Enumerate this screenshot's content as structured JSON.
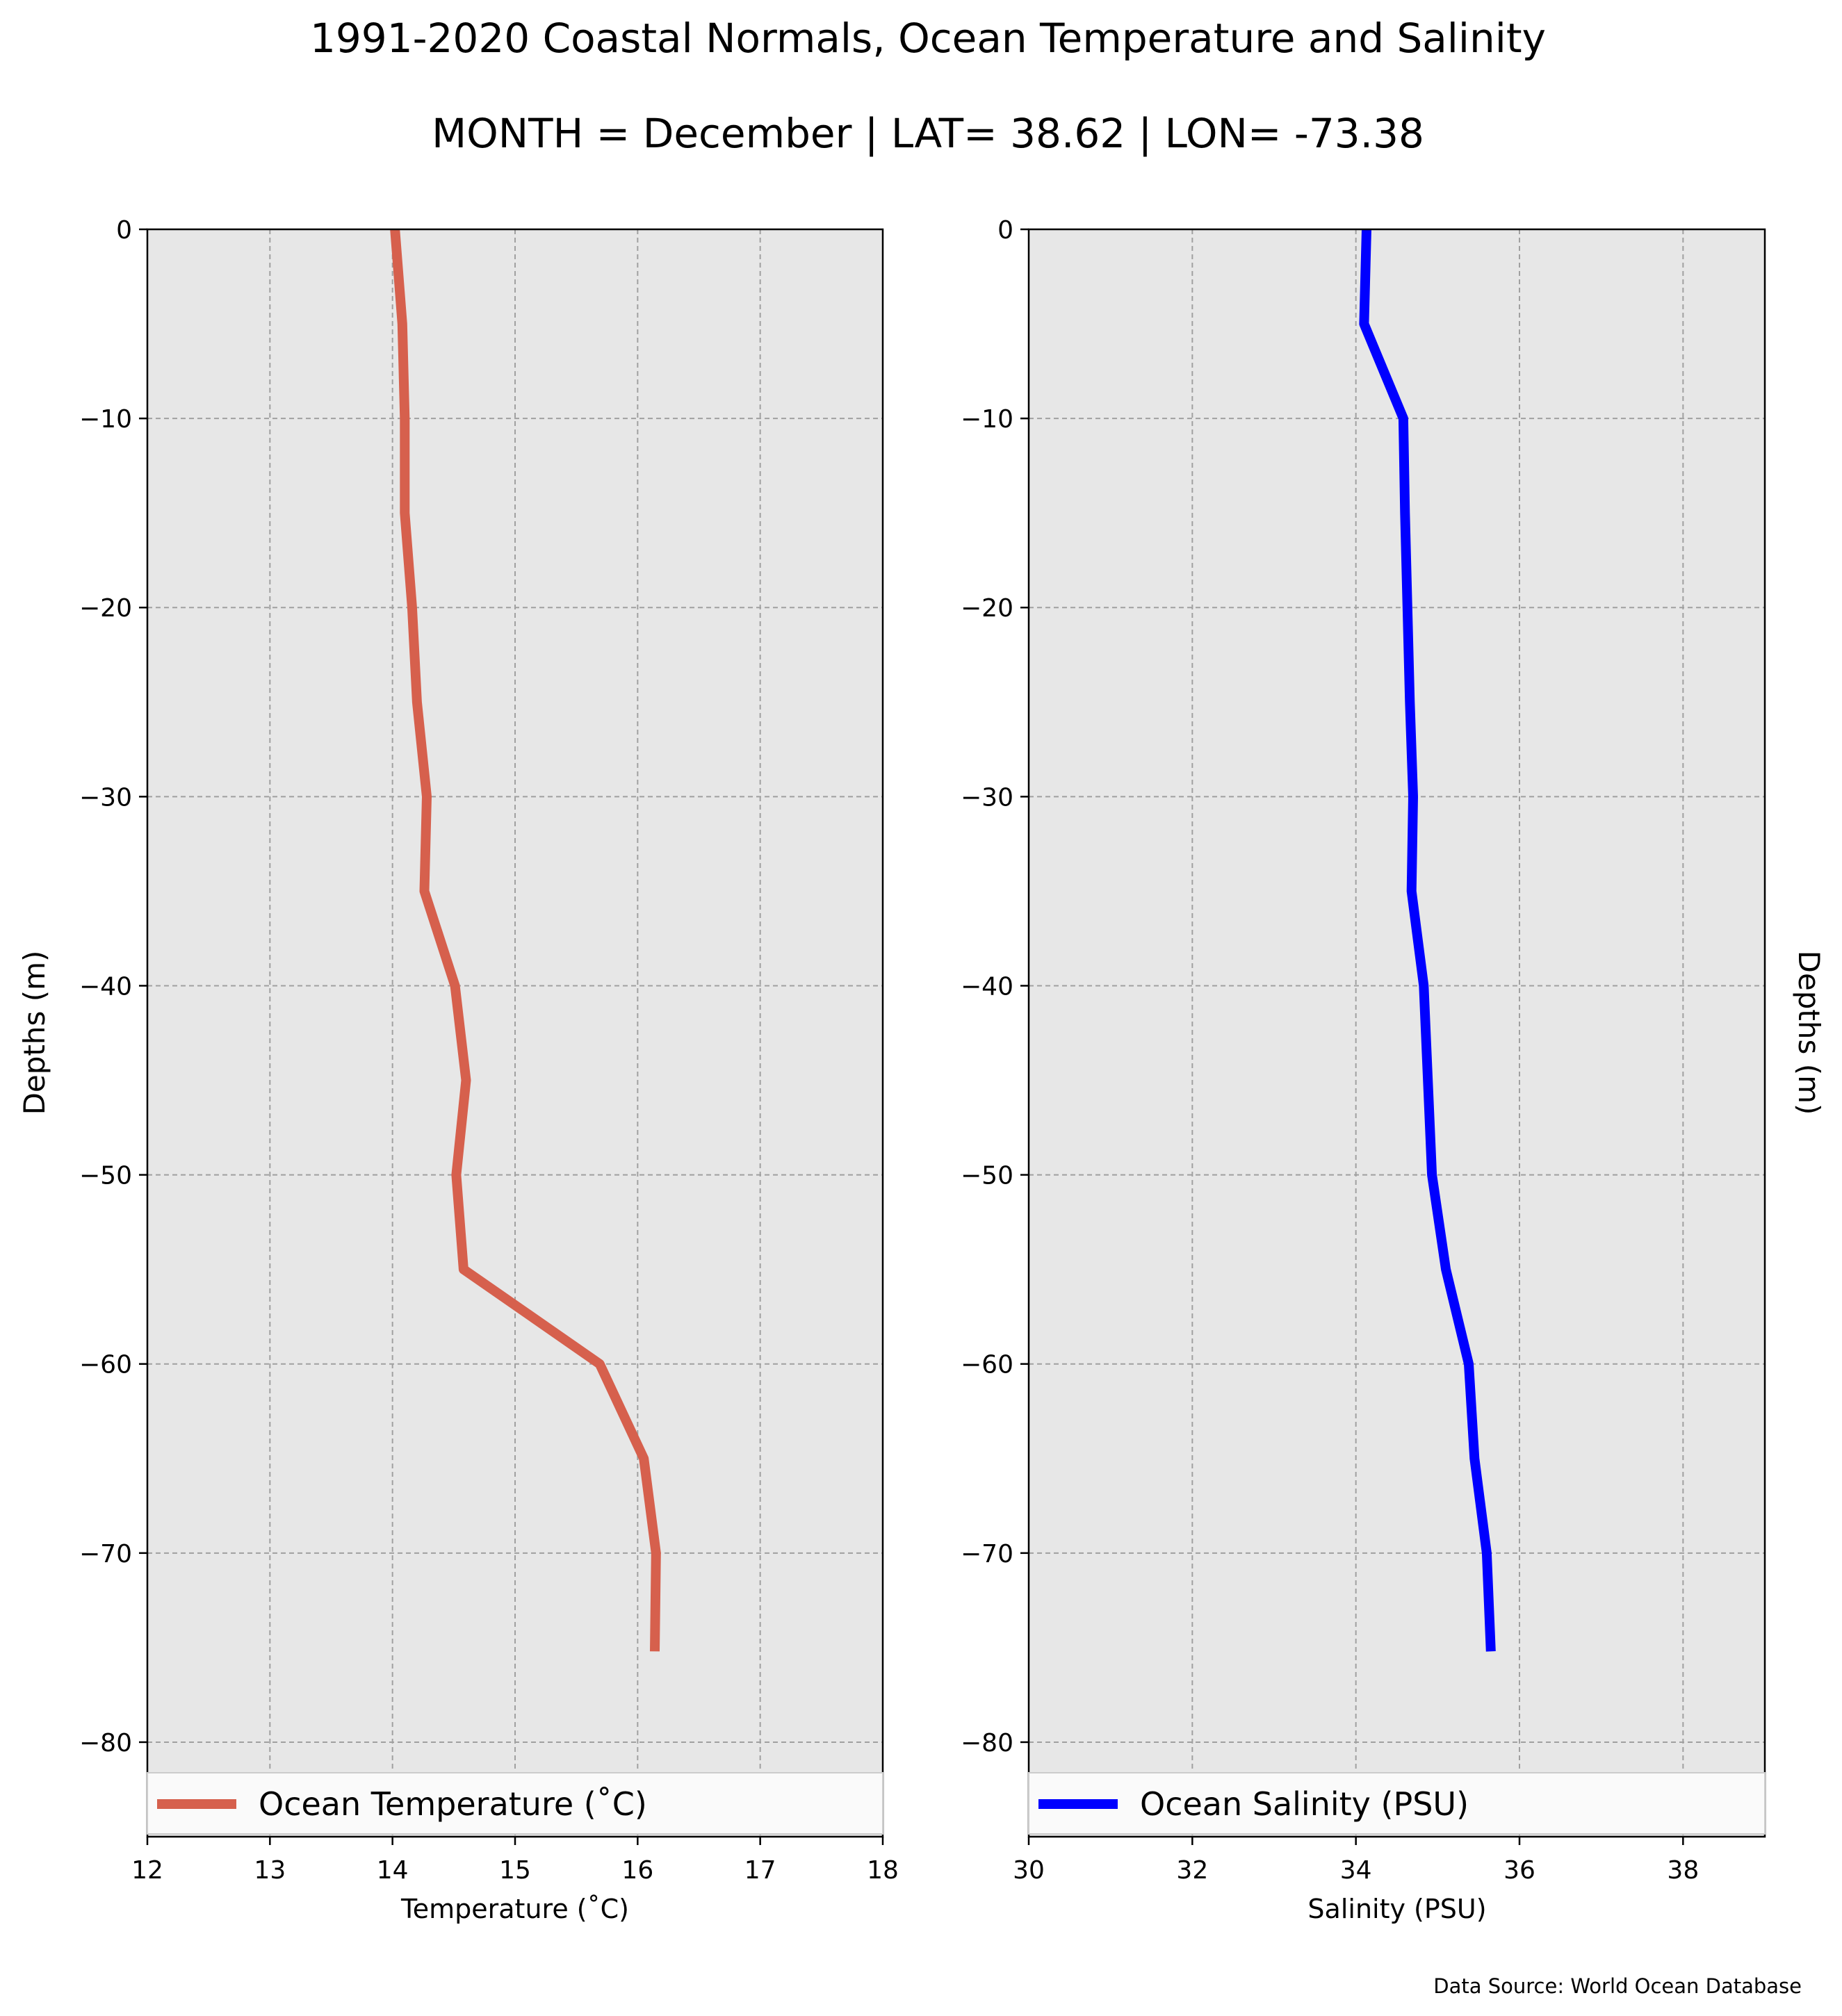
{
  "figure": {
    "title_line1": "1991-2020 Coastal Normals, Ocean Temperature and Salinity",
    "title_line2": "MONTH = December | LAT= 38.62 | LON= -73.38",
    "source_note": "Data Source: World Ocean Database"
  },
  "chart_data": [
    {
      "type": "line",
      "xlabel": "Temperature ($^\\circ$C)",
      "xlabel_display": "Temperature (˚C)",
      "ylabel": "Depths (m)",
      "xlim": [
        12,
        18
      ],
      "ylim": [
        -85,
        0
      ],
      "xticks": [
        12,
        13,
        14,
        15,
        16,
        17,
        18
      ],
      "yticks": [
        0,
        -10,
        -20,
        -30,
        -40,
        -50,
        -60,
        -70,
        -80
      ],
      "grid": true,
      "legend_position": "bottom",
      "series": [
        {
          "name": "Ocean Temperature (˚C)",
          "color": "#d6604d",
          "x": [
            14.02,
            14.08,
            14.1,
            14.1,
            14.16,
            14.2,
            14.28,
            14.26,
            14.51,
            14.6,
            14.52,
            14.58,
            15.69,
            16.05,
            16.15,
            16.14
          ],
          "y": [
            0,
            -5,
            -10,
            -15,
            -20,
            -25,
            -30,
            -35,
            -40,
            -45,
            -50,
            -55,
            -60,
            -65,
            -70,
            -75.2
          ]
        }
      ]
    },
    {
      "type": "line",
      "xlabel": "Salinity (PSU)",
      "ylabel": "Depths (m)",
      "xlim": [
        30,
        39
      ],
      "ylim": [
        -85,
        0
      ],
      "xticks": [
        30,
        32,
        34,
        36,
        38
      ],
      "yticks": [
        0,
        -10,
        -20,
        -30,
        -40,
        -50,
        -60,
        -70,
        -80
      ],
      "grid": true,
      "legend_position": "bottom",
      "series": [
        {
          "name": "Ocean Salinity (PSU)",
          "color": "#0000ff",
          "x": [
            34.13,
            34.1,
            34.58,
            34.6,
            34.63,
            34.66,
            34.7,
            34.68,
            34.83,
            34.88,
            34.93,
            35.1,
            35.38,
            35.45,
            35.6,
            35.65
          ],
          "y": [
            0,
            -5,
            -10,
            -15,
            -20,
            -25,
            -30,
            -35,
            -40,
            -45,
            -50,
            -55,
            -60,
            -65,
            -70,
            -75.2
          ]
        }
      ]
    }
  ]
}
